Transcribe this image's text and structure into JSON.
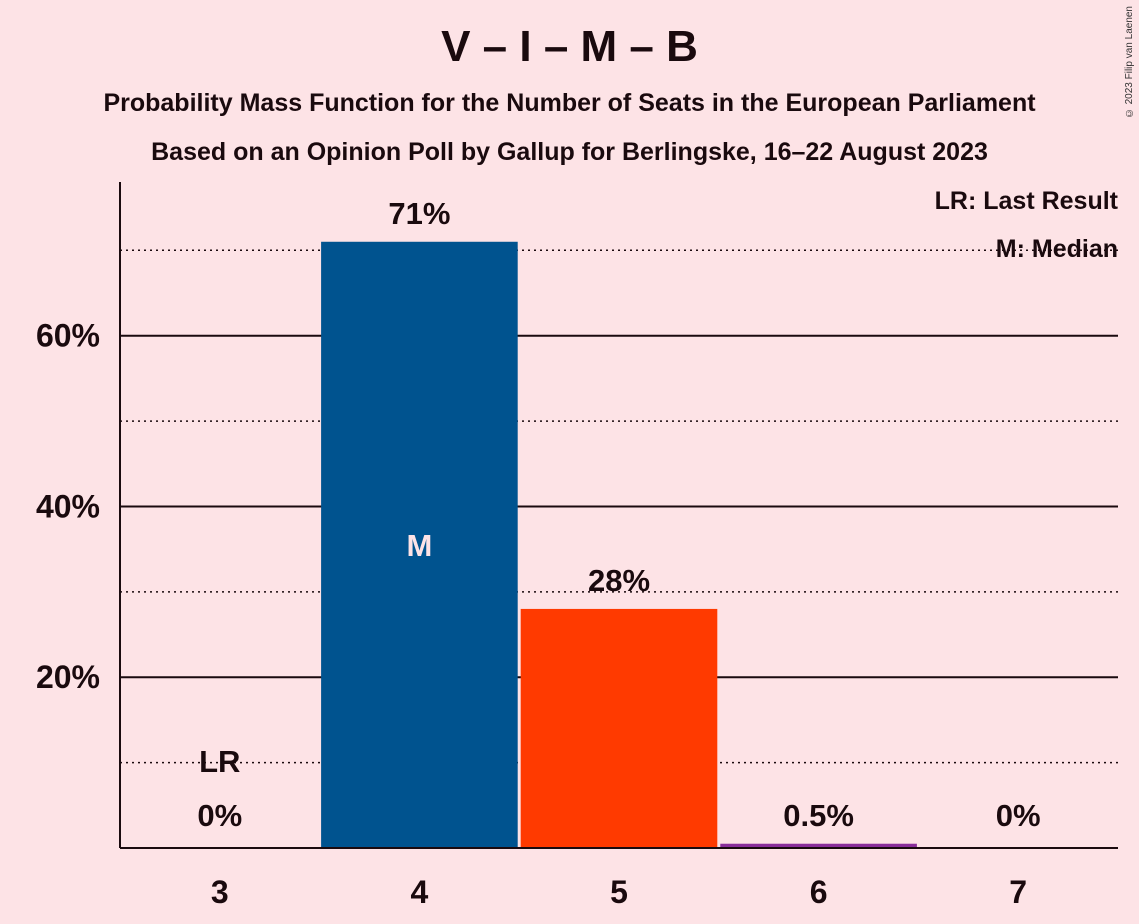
{
  "chart_data": {
    "type": "bar",
    "title": "V – I – M – B",
    "subtitle": "Probability Mass Function for the Number of Seats in the European Parliament",
    "subtitle2": "Based on an Opinion Poll by Gallup for Berlingske, 16–22 August 2023",
    "copyright": "© 2023 Filip van Laenen",
    "categories": [
      "3",
      "4",
      "5",
      "6",
      "7"
    ],
    "values": [
      0,
      71,
      28,
      0.5,
      0
    ],
    "value_labels": [
      "0%",
      "71%",
      "28%",
      "0.5%",
      "0%"
    ],
    "bar_colors": [
      "#00538f",
      "#00538f",
      "#ff3a00",
      "#8a2e9a",
      "#00538f"
    ],
    "ylim": [
      0,
      78
    ],
    "yticks": [
      20,
      40,
      60
    ],
    "ytick_labels": [
      "20%",
      "40%",
      "60%"
    ],
    "minor_gridlines": [
      10,
      30,
      50,
      70
    ],
    "last_result_category": "3",
    "last_result_marker": "LR",
    "median_category": "4",
    "median_marker": "M",
    "legend": [
      "LR: Last Result",
      "M: Median"
    ],
    "legend_position": "top-right",
    "grid": true
  }
}
